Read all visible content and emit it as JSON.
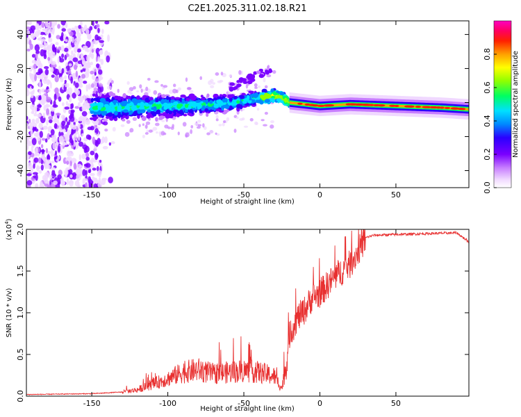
{
  "title": "C2E1.2025.311.02.18.R21",
  "chart_data": [
    {
      "type": "heatmap",
      "xlabel": "Height of straight line (km)",
      "ylabel": "Frequency (Hz)",
      "xlim": [
        -193,
        98
      ],
      "ylim": [
        -50,
        48
      ],
      "xticks": [
        -150,
        -100,
        -50,
        0,
        50
      ],
      "yticks": [
        -40,
        -20,
        0,
        20,
        40
      ],
      "ridge": {
        "x": [
          -150,
          -130,
          -110,
          -90,
          -70,
          -55,
          -45,
          -38,
          -30,
          -25,
          -20,
          -10,
          0,
          20,
          50,
          80,
          98
        ],
        "y": [
          -3,
          -3,
          -2,
          -2,
          -1,
          0,
          2,
          3,
          4,
          3,
          0,
          -1,
          -2,
          -1,
          -2,
          -3,
          -4
        ]
      },
      "colorbar": {
        "label": "Normalized spectral amplitude",
        "ticks": [
          "0.0",
          "0.2",
          "0.4",
          "0.6",
          "0.8"
        ],
        "range": [
          0,
          1
        ]
      }
    },
    {
      "type": "line",
      "xlabel": "Height of straight line (km)",
      "ylabel": "SNR (10 * v/v)",
      "multiplier": "(x10",
      "multiplier_exp": "4",
      "xlim": [
        -193,
        98
      ],
      "ylim": [
        0,
        2.0
      ],
      "xticks": [
        -150,
        -100,
        -50,
        0,
        50
      ],
      "yticks": [
        "0.0",
        "0.5",
        "1.0",
        "1.5",
        "2.0"
      ],
      "envelope": {
        "x": [
          -193,
          -150,
          -130,
          -120,
          -110,
          -100,
          -90,
          -80,
          -70,
          -60,
          -50,
          -40,
          -30,
          -25,
          -22,
          -20,
          -15,
          -10,
          -5,
          0,
          10,
          20,
          25,
          30,
          35,
          50,
          90,
          98
        ],
        "y": [
          0.02,
          0.03,
          0.05,
          0.08,
          0.15,
          0.22,
          0.3,
          0.33,
          0.28,
          0.3,
          0.32,
          0.3,
          0.25,
          0.1,
          0.4,
          0.75,
          0.95,
          1.05,
          1.2,
          1.25,
          1.45,
          1.6,
          1.75,
          1.9,
          1.93,
          1.94,
          1.96,
          1.85
        ]
      },
      "color": "#e83030"
    }
  ]
}
